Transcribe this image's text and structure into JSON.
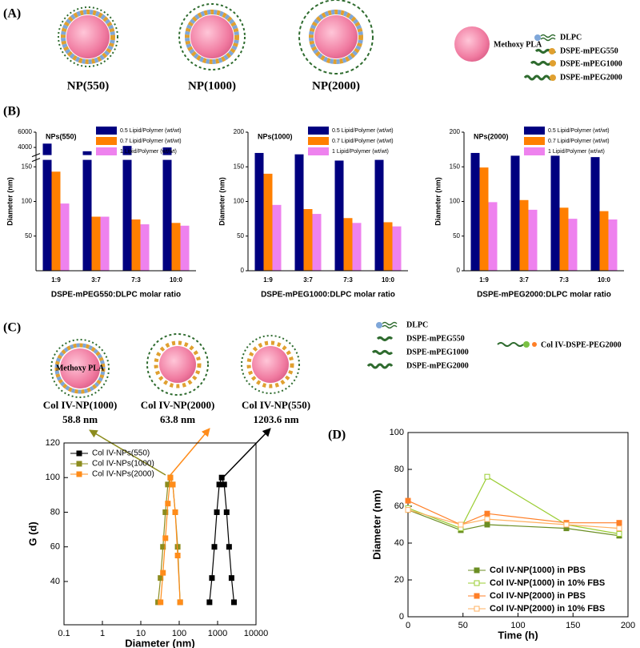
{
  "panels": {
    "a": "(A)",
    "b": "(B)",
    "c": "(C)",
    "d": "(D)"
  },
  "diagram_a": {
    "particles": [
      "NP(550)",
      "NP(1000)",
      "NP(2000)"
    ],
    "core_label": "Methoxy PLA",
    "legend": [
      "DLPC",
      "DSPE-mPEG550",
      "DSPE-mPEG1000",
      "DSPE-mPEG2000"
    ]
  },
  "diagram_c": {
    "core_label": "Methoxy PLA",
    "legend": [
      "DLPC",
      "DSPE-mPEG550",
      "DSPE-mPEG1000",
      "DSPE-mPEG2000"
    ],
    "ligand": "Col IV-DSPE-PEG2000",
    "sizes": [
      {
        "name": "Col IV-NP(1000)",
        "size": "58.8 nm"
      },
      {
        "name": "Col IV-NP(2000)",
        "size": "63.8 nm"
      },
      {
        "name": "Col IV-NP(550)",
        "size": "1203.6 nm"
      }
    ]
  },
  "chart_data": [
    {
      "type": "bar",
      "title": "NPs(550)",
      "x_label": "DSPE-mPEG550:DLPC molar ratio",
      "y_label": "Diameter (nm)",
      "categories": [
        "1:9",
        "3:7",
        "7:3",
        "10:0"
      ],
      "ylim": [
        0,
        6000
      ],
      "ybreak": [
        160,
        3000
      ],
      "yticks": [
        50,
        100,
        150,
        4000,
        6000
      ],
      "series": [
        {
          "name": "0.5 Lipid/Polymer (wt/wt)",
          "color": "#000080",
          "values": [
            4500,
            3500,
            4200,
            4000
          ]
        },
        {
          "name": "0.7 Lipid/Polymer (wt/wt)",
          "color": "#ff7f00",
          "values": [
            143,
            78,
            74,
            69
          ]
        },
        {
          "name": "1 Lipid/Polymer (wt/wt)",
          "color": "#ee82ee",
          "values": [
            97,
            78,
            67,
            65
          ]
        }
      ]
    },
    {
      "type": "bar",
      "title": "NPs(1000)",
      "x_label": "DSPE-mPEG1000:DLPC molar ratio",
      "y_label": "Diameter (nm)",
      "categories": [
        "1:9",
        "3:7",
        "7:3",
        "10:0"
      ],
      "ylim": [
        0,
        200
      ],
      "yticks": [
        0,
        50,
        100,
        150,
        200
      ],
      "series": [
        {
          "name": "0.5 Lipid/Polymer (wt/wt)",
          "color": "#000080",
          "values": [
            170,
            168,
            159,
            160
          ]
        },
        {
          "name": "0.7 Lipid/Polymer (wt/wt)",
          "color": "#ff7f00",
          "values": [
            140,
            89,
            76,
            70
          ]
        },
        {
          "name": "1 Lipid/Polymer (wt/wt)",
          "color": "#ee82ee",
          "values": [
            95,
            82,
            69,
            64
          ]
        }
      ]
    },
    {
      "type": "bar",
      "title": "NPs(2000)",
      "x_label": "DSPE-mPEG2000:DLPC molar ratio",
      "y_label": "Diameter (nm)",
      "categories": [
        "1:9",
        "3:7",
        "7:3",
        "10:0"
      ],
      "ylim": [
        0,
        200
      ],
      "yticks": [
        0,
        50,
        100,
        150,
        200
      ],
      "series": [
        {
          "name": "0.5 Lipid/Polymer (wt/wt)",
          "color": "#000080",
          "values": [
            170,
            166,
            166,
            164
          ]
        },
        {
          "name": "0.7 Lipid/Polymer (wt/wt)",
          "color": "#ff7f00",
          "values": [
            149,
            102,
            91,
            86
          ]
        },
        {
          "name": "1 Lipid/Polymer (wt/wt)",
          "color": "#ee82ee",
          "values": [
            99,
            88,
            75,
            74
          ]
        }
      ]
    },
    {
      "type": "line",
      "x_label": "Diameter (nm)",
      "y_label": "G (d)",
      "xlog": true,
      "xlim": [
        0.1,
        10000
      ],
      "xticks": [
        0.1,
        1,
        10,
        100,
        1000,
        10000
      ],
      "ylim": [
        15,
        120
      ],
      "yticks": [
        40,
        60,
        80,
        100,
        120
      ],
      "series": [
        {
          "name": "Col IV-NPs(550)",
          "color": "#000000",
          "marker": "filled",
          "x": [
            615,
            712,
            825,
            955,
            1106,
            1281,
            1484,
            1718,
            1990,
            2305,
            2670
          ],
          "values": [
            28,
            42,
            60,
            80,
            96,
            100,
            96,
            80,
            60,
            42,
            28
          ]
        },
        {
          "name": "Col IV-NPs(1000)",
          "color": "#8c8c1e",
          "marker": "filled",
          "x": [
            28.2,
            32.7,
            37.8,
            43.8,
            50.7,
            58.8,
            68.1,
            78.8,
            91.3,
            105.7
          ],
          "values": [
            28,
            42,
            60,
            80,
            96,
            100,
            96,
            80,
            60,
            28
          ]
        },
        {
          "name": "Col IV-NPs(2000)",
          "color": "#ff8c1a",
          "marker": "filled",
          "x": [
            32.7,
            37.8,
            43.8,
            50.7,
            58.8,
            68.1,
            78.8,
            91.3,
            105.7
          ],
          "values": [
            28,
            45,
            65,
            85,
            100,
            96,
            80,
            55,
            28
          ]
        }
      ]
    },
    {
      "type": "line",
      "x_label": "Time (h)",
      "y_label": "Diameter (nm)",
      "xlim": [
        0,
        200
      ],
      "xticks": [
        0,
        50,
        100,
        150,
        200
      ],
      "ylim": [
        0,
        100
      ],
      "yticks": [
        0,
        20,
        40,
        60,
        80,
        100
      ],
      "x": [
        0,
        48,
        72,
        144,
        192
      ],
      "series": [
        {
          "name": "Col IV-NP(1000) in PBS",
          "color": "#6b8e23",
          "marker": "filled",
          "values": [
            58,
            47,
            50,
            48,
            44
          ]
        },
        {
          "name": "Col IV-NP(1000) in 10% FBS",
          "color": "#9acd32",
          "marker": "open",
          "values": [
            59,
            48,
            76,
            50,
            45
          ]
        },
        {
          "name": "Col IV-NP(2000) in PBS",
          "color": "#ff7f27",
          "marker": "filled",
          "values": [
            63,
            50,
            56,
            51,
            51
          ]
        },
        {
          "name": "Col IV-NP(2000) in 10% FBS",
          "color": "#ffb060",
          "marker": "open",
          "values": [
            58,
            50,
            53,
            50,
            48
          ]
        }
      ]
    }
  ]
}
